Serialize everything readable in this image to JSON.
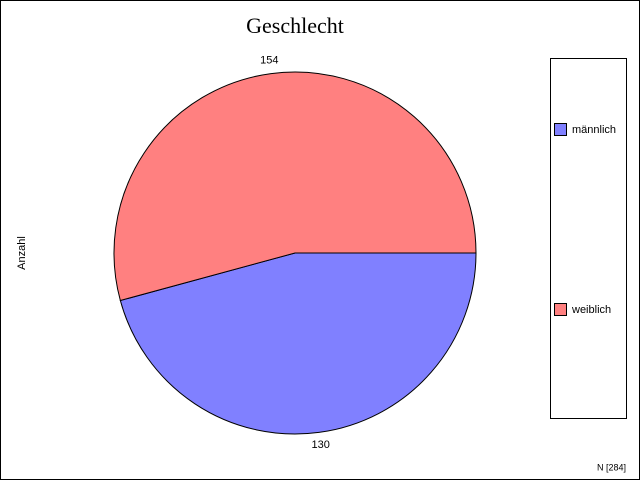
{
  "chart_data": {
    "type": "pie",
    "title": "Geschlecht",
    "y_label": "Anzahl",
    "note": "N [284]",
    "categories": [
      "männlich",
      "weiblich"
    ],
    "values": [
      130,
      154
    ],
    "colors": [
      "#8080ff",
      "#ff8080"
    ],
    "start_angle": 0,
    "direction": "clockwise",
    "legend": "right"
  }
}
